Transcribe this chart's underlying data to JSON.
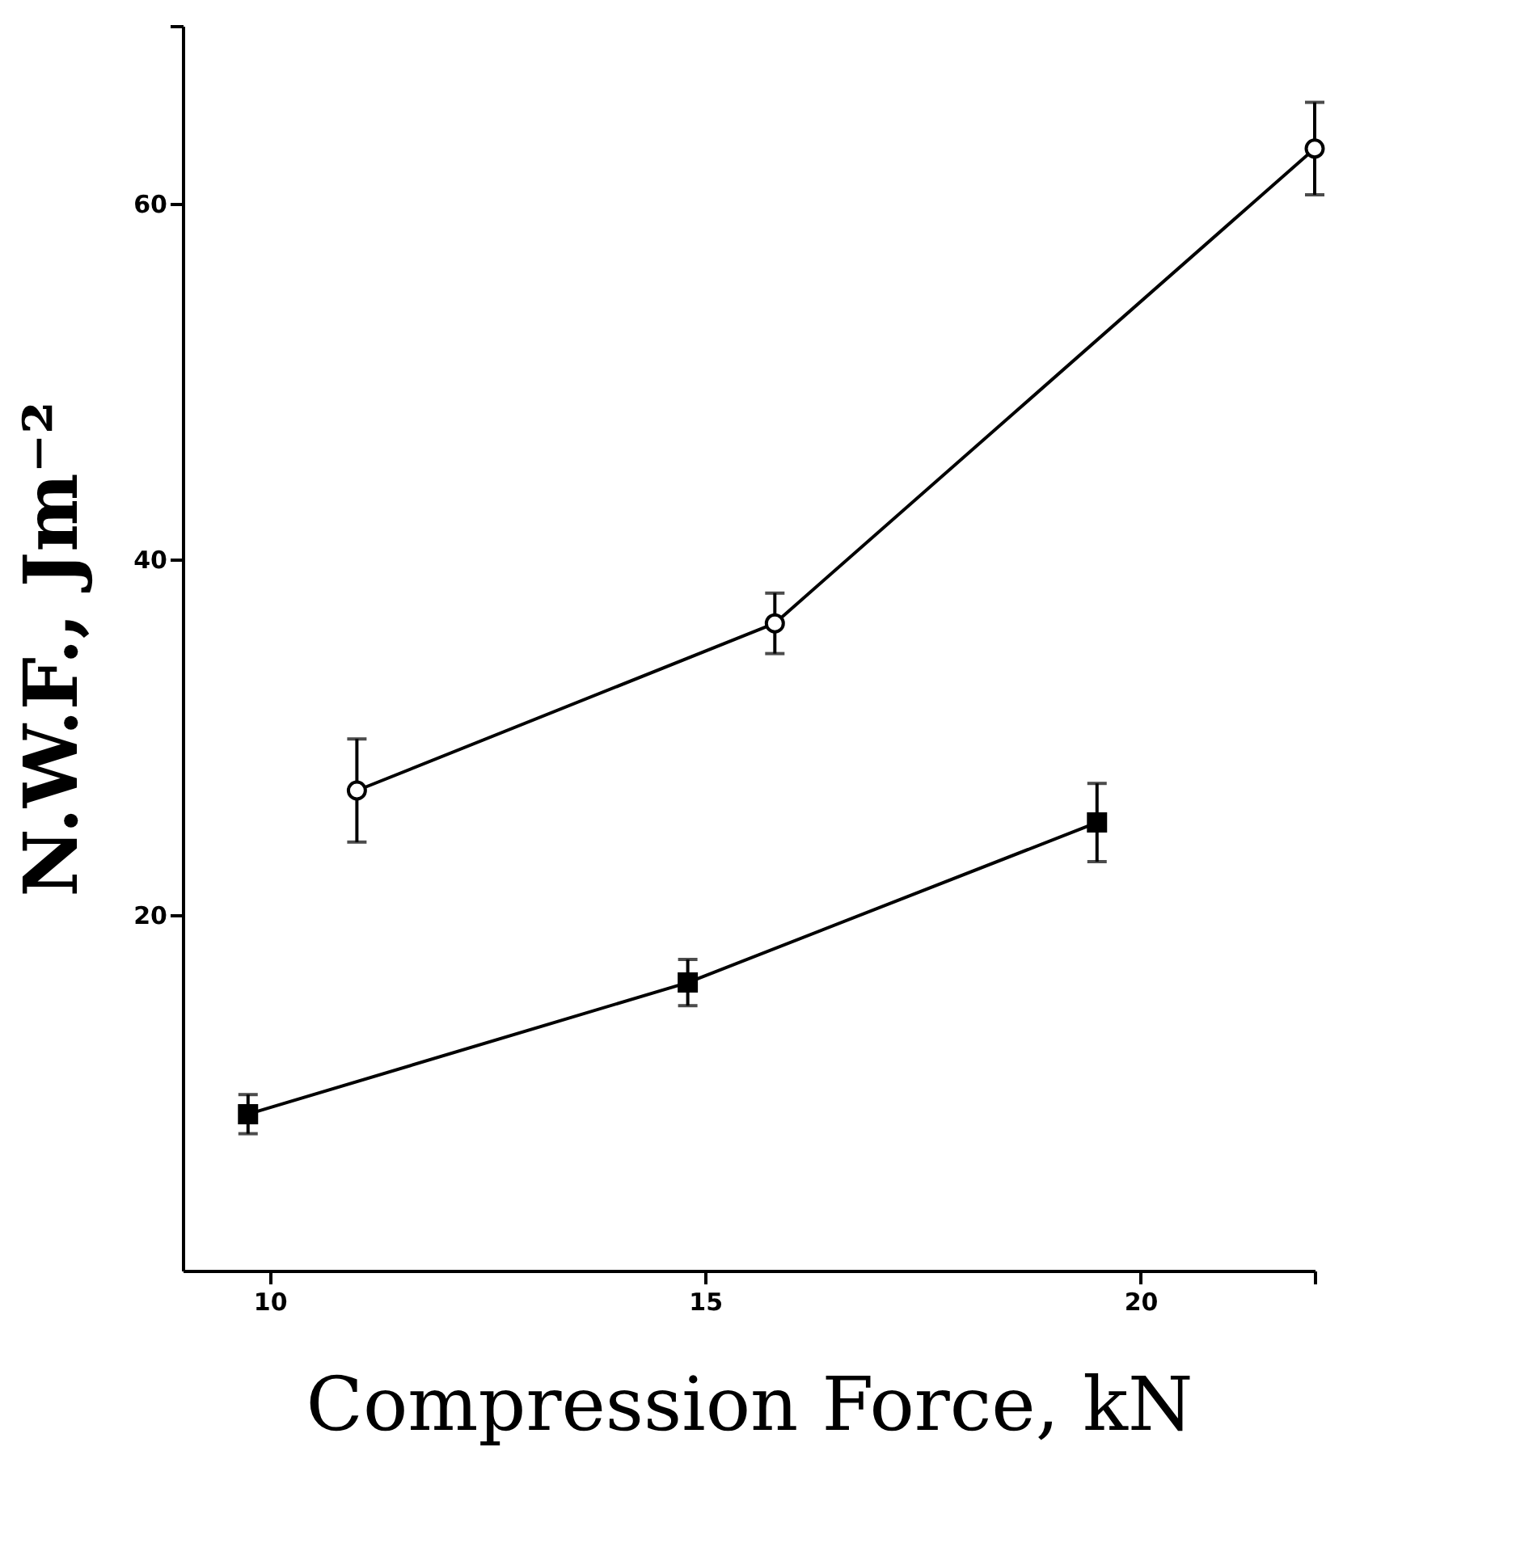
{
  "chart_data": {
    "type": "line",
    "xlabel": "Compression Force, kN",
    "ylabel": "N.W.F., Jm⁻²",
    "xlim": [
      9,
      22
    ],
    "xticks": [
      10,
      15,
      20,
      {
        "value": 22,
        "label": null
      }
    ],
    "ylim": [
      0,
      70
    ],
    "yticks": [
      20,
      40,
      60,
      {
        "value": 70,
        "label": null
      }
    ],
    "grid": false,
    "line_style": "solid",
    "series": [
      {
        "color": "#000000",
        "marker": "circle",
        "x": [
          11.0,
          15.8,
          22.0
        ],
        "values": [
          27.0,
          36.4,
          63.1
        ],
        "errors": [
          2.9,
          1.7,
          2.6
        ]
      },
      {
        "color": "#000000",
        "marker": "square",
        "x": [
          9.75,
          14.8,
          19.5
        ],
        "values": [
          8.8,
          16.2,
          25.2
        ],
        "errors": [
          1.1,
          1.3,
          2.2
        ]
      }
    ]
  }
}
